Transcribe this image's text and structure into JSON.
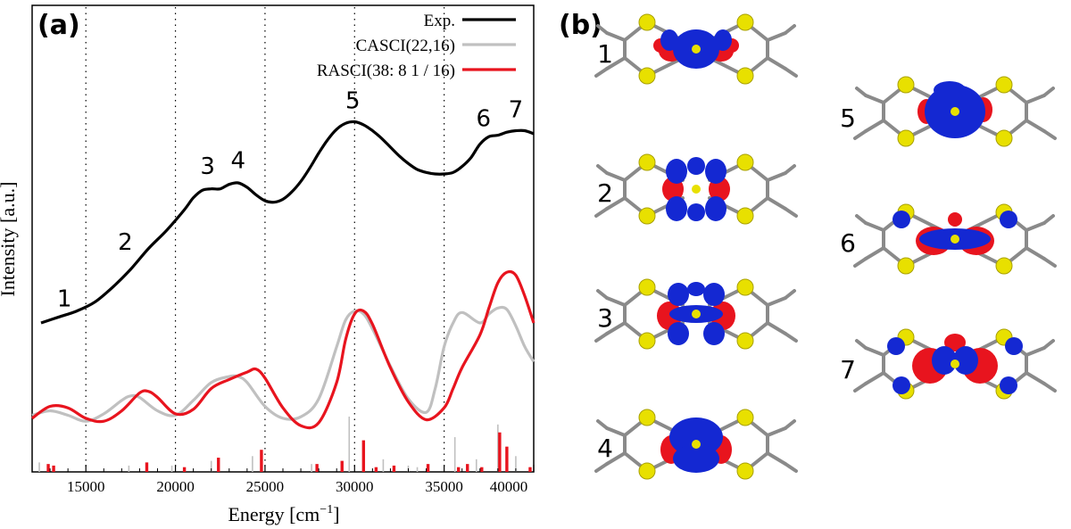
{
  "panel_a": {
    "label": "(a)",
    "chart_data": {
      "type": "line",
      "xlabel": "Energy [cm",
      "xlabel_sup": "−1",
      "xlabel_tail": "]",
      "ylabel": "Intensity [a.u.]",
      "xlim": [
        12000,
        40000
      ],
      "xticks": [
        15000,
        20000,
        25000,
        30000,
        35000,
        40000
      ],
      "xtick_labels": [
        "15000",
        "20000",
        "25000",
        "30000",
        "35000",
        "40000"
      ],
      "vertical_grid_at": [
        15000,
        20000,
        25000,
        30000,
        35000
      ],
      "grid_style": "dotted-vertical",
      "y_scale": "arbitrary units (no tick labels)",
      "legend_placement": "top-right",
      "series": [
        {
          "name": "Exp.",
          "color": "#000000",
          "x": [
            12500,
            13500,
            14500,
            15500,
            16500,
            17500,
            18500,
            19500,
            20500,
            21000,
            21500,
            22000,
            22500,
            23000,
            23500,
            24000,
            24500,
            25000,
            25500,
            26000,
            26500,
            27000,
            27500,
            28000,
            28500,
            29000,
            29500,
            30000,
            30500,
            31000,
            31500,
            32000,
            32500,
            33000,
            33500,
            34000,
            34500,
            35000,
            35500,
            36000,
            36500,
            37000,
            37500,
            38000,
            38500,
            39000,
            39500,
            40000
          ],
          "y": [
            0.06,
            0.1,
            0.14,
            0.2,
            0.3,
            0.42,
            0.56,
            0.68,
            0.82,
            0.9,
            0.95,
            0.96,
            0.96,
            0.99,
            1.0,
            0.97,
            0.92,
            0.88,
            0.87,
            0.89,
            0.94,
            1.01,
            1.1,
            1.2,
            1.29,
            1.36,
            1.4,
            1.41,
            1.39,
            1.35,
            1.3,
            1.24,
            1.18,
            1.13,
            1.09,
            1.07,
            1.06,
            1.06,
            1.07,
            1.11,
            1.17,
            1.26,
            1.31,
            1.32,
            1.34,
            1.35,
            1.35,
            1.33
          ]
        },
        {
          "name": "CASCI(22,16)",
          "color": "#c0c0c0",
          "x": [
            12000,
            13000,
            14000,
            15000,
            16000,
            17000,
            17500,
            18000,
            19000,
            20000,
            21000,
            22000,
            23000,
            23500,
            24000,
            25000,
            26000,
            27000,
            28000,
            29000,
            29500,
            30000,
            30500,
            31000,
            32000,
            33000,
            34000,
            34500,
            35000,
            35500,
            36000,
            37000,
            37500,
            38000,
            38500,
            39000,
            39500,
            40000
          ],
          "y": [
            -0.56,
            -0.53,
            -0.56,
            -0.6,
            -0.55,
            -0.46,
            -0.43,
            -0.44,
            -0.53,
            -0.56,
            -0.46,
            -0.34,
            -0.3,
            -0.3,
            -0.34,
            -0.5,
            -0.58,
            -0.57,
            -0.45,
            -0.1,
            0.08,
            0.14,
            0.12,
            0.02,
            -0.23,
            -0.45,
            -0.54,
            -0.38,
            -0.1,
            0.06,
            0.13,
            0.06,
            0.12,
            0.16,
            0.15,
            0.04,
            -0.1,
            -0.2
          ]
        },
        {
          "name": "RASCI(38: 8 1 / 16)",
          "color": "#e8141e",
          "x": [
            12000,
            13000,
            14000,
            15000,
            16000,
            17000,
            18000,
            18500,
            19000,
            20000,
            21000,
            22000,
            23000,
            24000,
            24500,
            25000,
            26000,
            27000,
            28000,
            29000,
            29500,
            30000,
            30500,
            31000,
            32000,
            33000,
            34000,
            35000,
            35500,
            36000,
            37000,
            37500,
            38000,
            38500,
            39000,
            39500,
            40000
          ],
          "y": [
            -0.58,
            -0.5,
            -0.51,
            -0.58,
            -0.6,
            -0.53,
            -0.41,
            -0.4,
            -0.44,
            -0.55,
            -0.52,
            -0.38,
            -0.32,
            -0.27,
            -0.25,
            -0.31,
            -0.51,
            -0.63,
            -0.61,
            -0.34,
            -0.05,
            0.12,
            0.14,
            0.05,
            -0.24,
            -0.47,
            -0.59,
            -0.51,
            -0.38,
            -0.24,
            -0.02,
            0.16,
            0.33,
            0.4,
            0.38,
            0.24,
            0.06
          ]
        }
      ],
      "sticks": [
        {
          "series": "CASCI(22,16)",
          "color": "#c0c0c0",
          "x": [
            12400,
            17400,
            19800,
            22000,
            24300,
            27600,
            29700,
            31600,
            33000,
            33500,
            35600,
            36800,
            38000,
            39000,
            39800
          ],
          "h": [
            0.06,
            0.04,
            0.04,
            0.07,
            0.1,
            0.05,
            0.35,
            0.08,
            0.04,
            0.03,
            0.22,
            0.08,
            0.3,
            0.1,
            0.03
          ]
        },
        {
          "series": "RASCI(38: 8 1 / 16)",
          "color": "#e8141e",
          "x": [
            12900,
            13200,
            18400,
            20500,
            22400,
            24800,
            27900,
            29300,
            30500,
            31200,
            32200,
            34100,
            35800,
            36300,
            37100,
            38100,
            38500,
            39800
          ],
          "h": [
            0.05,
            0.04,
            0.06,
            0.03,
            0.09,
            0.14,
            0.05,
            0.07,
            0.2,
            0.03,
            0.04,
            0.05,
            0.03,
            0.05,
            0.03,
            0.25,
            0.16,
            0.03
          ]
        }
      ],
      "peak_annotations": [
        {
          "label": "1",
          "x": 13800,
          "y": 0.17
        },
        {
          "label": "2",
          "x": 17200,
          "y": 0.55
        },
        {
          "label": "3",
          "x": 21800,
          "y": 1.06
        },
        {
          "label": "4",
          "x": 23500,
          "y": 1.1
        },
        {
          "label": "5",
          "x": 29900,
          "y": 1.5
        },
        {
          "label": "6",
          "x": 37200,
          "y": 1.38
        },
        {
          "label": "7",
          "x": 39000,
          "y": 1.44
        }
      ]
    }
  },
  "panel_b": {
    "label": "(b)",
    "orbitals": [
      {
        "label": "1"
      },
      {
        "label": "2"
      },
      {
        "label": "3"
      },
      {
        "label": "4"
      },
      {
        "label": "5"
      },
      {
        "label": "6"
      },
      {
        "label": "7"
      }
    ],
    "colors": {
      "positive_lobe": "#1428d2",
      "negative_lobe": "#e8141e",
      "sulfur": "#e8e000",
      "bond": "#8a8a8a"
    }
  }
}
